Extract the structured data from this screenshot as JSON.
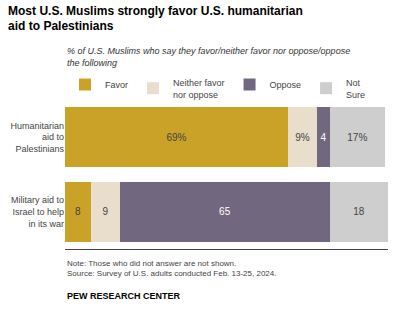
{
  "chart_data": {
    "type": "bar",
    "orientation": "horizontal",
    "stacked": true,
    "title": "Most U.S. Muslims strongly favor U.S. humanitarian\naid to Palestinians",
    "subtitle": "% of U.S. Muslims who say they favor/neither favor nor oppose/oppose\nthe following",
    "annotations": [
      "Note: Those who did not answer are not shown.\nSource: Survey of U.S. adults conducted Feb. 13-25, 2024.",
      "PEW RESEARCH CENTER"
    ],
    "categories": [
      "Humanitarian\naid to\nPalestinians",
      "Military aid to\nIsrael to help\nin its war"
    ],
    "series": [
      {
        "name": "Favor",
        "color": "#C9A227",
        "values": [
          69,
          8
        ],
        "value_labels": [
          "69%",
          "8"
        ]
      },
      {
        "name": "Neither favor\nnor oppose",
        "color": "#E8DECB",
        "values": [
          9,
          9
        ],
        "value_labels": [
          "9%",
          "9"
        ]
      },
      {
        "name": "Oppose",
        "color": "#716880",
        "values": [
          4,
          65
        ],
        "value_labels": [
          "4",
          "65"
        ]
      },
      {
        "name": "Not\nSure",
        "color": "#CECECE",
        "values": [
          17,
          18
        ],
        "value_labels": [
          "17%",
          "18"
        ]
      }
    ],
    "xlim": [
      0,
      100
    ],
    "data_labels": true,
    "tick_labels": "y",
    "grid": false,
    "legend": "top"
  }
}
